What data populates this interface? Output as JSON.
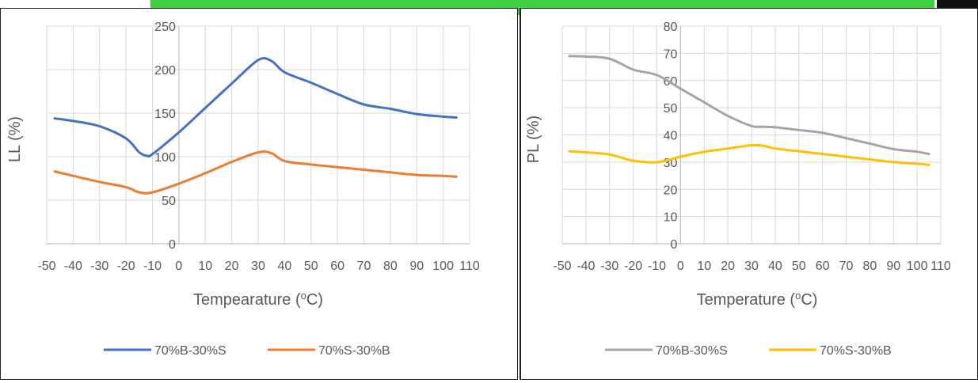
{
  "chart_data": [
    {
      "type": "line",
      "xlabel": "Tempearature (",
      "xlabel_sup": "o",
      "xlabel_end": "C)",
      "ylabel": "LL (%)",
      "xlim": [
        -50,
        110
      ],
      "ylim": [
        0,
        250
      ],
      "xticks": [
        -50,
        -40,
        -30,
        -20,
        -10,
        0,
        10,
        20,
        30,
        40,
        50,
        60,
        70,
        80,
        90,
        100,
        110
      ],
      "yticks": [
        0,
        50,
        100,
        150,
        200,
        250
      ],
      "grid": true,
      "legend": "bottom",
      "series": [
        {
          "name": "70%B-30%S",
          "color": "#4472c4",
          "x": [
            -47,
            -40,
            -30,
            -20,
            -15,
            -12,
            -10,
            0,
            10,
            20,
            30,
            35,
            40,
            50,
            60,
            70,
            80,
            90,
            100,
            105
          ],
          "y": [
            144,
            141,
            135,
            121,
            105,
            101,
            103,
            128,
            156,
            184,
            211,
            210,
            197,
            185,
            172,
            160,
            155,
            149,
            146,
            145
          ]
        },
        {
          "name": "70%S-30%B",
          "color": "#ed7d31",
          "x": [
            -47,
            -40,
            -30,
            -20,
            -15,
            -10,
            0,
            10,
            20,
            30,
            35,
            40,
            50,
            60,
            70,
            80,
            90,
            100,
            105
          ],
          "y": [
            83,
            78,
            71,
            65,
            59,
            59,
            69,
            81,
            94,
            105,
            104,
            95,
            91,
            88,
            85,
            82,
            79,
            78,
            77
          ]
        }
      ]
    },
    {
      "type": "line",
      "xlabel": "Temperature (",
      "xlabel_sup": "o",
      "xlabel_end": "C)",
      "ylabel": "PL (%)",
      "xlim": [
        -50,
        110
      ],
      "ylim": [
        0,
        80
      ],
      "xticks": [
        -50,
        -40,
        -30,
        -20,
        -10,
        0,
        10,
        20,
        30,
        40,
        50,
        60,
        70,
        80,
        90,
        100,
        110
      ],
      "yticks": [
        0,
        10,
        20,
        30,
        40,
        50,
        60,
        70,
        80
      ],
      "grid": true,
      "legend": "bottom",
      "series": [
        {
          "name": "70%B-30%S",
          "color": "#a5a5a5",
          "x": [
            -47,
            -40,
            -30,
            -20,
            -10,
            0,
            10,
            20,
            30,
            35,
            40,
            50,
            60,
            70,
            80,
            90,
            100,
            105
          ],
          "y": [
            69,
            68.8,
            68,
            64,
            62,
            57,
            52,
            47,
            43.3,
            43,
            42.8,
            41.8,
            40.8,
            38.8,
            36.8,
            34.8,
            33.8,
            33
          ]
        },
        {
          "name": "70%S-30%B",
          "color": "#ffc000",
          "x": [
            -47,
            -40,
            -30,
            -20,
            -10,
            0,
            10,
            20,
            30,
            35,
            40,
            50,
            60,
            70,
            80,
            90,
            100,
            105
          ],
          "y": [
            34,
            33.6,
            32.8,
            30.5,
            30,
            32,
            33.8,
            35,
            36.2,
            36,
            35,
            34,
            33,
            32,
            31,
            30,
            29.4,
            29
          ]
        }
      ]
    }
  ]
}
